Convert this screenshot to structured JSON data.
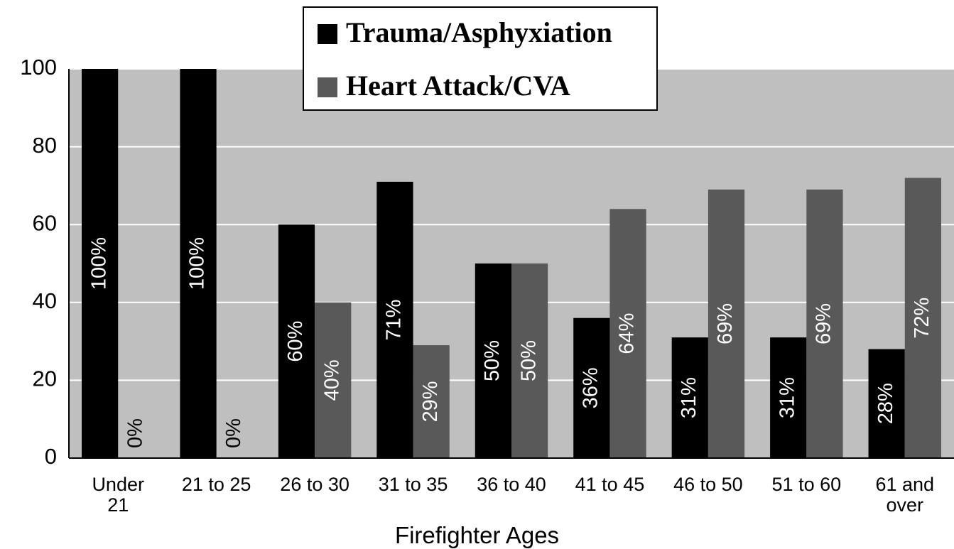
{
  "chart_data": {
    "type": "bar",
    "x_label": "Firefighter Ages",
    "categories": [
      "Under\n21",
      "21 to 25",
      "26 to 30",
      "31 to 35",
      "36 to 40",
      "41 to 45",
      "46 to 50",
      "51 to 60",
      "61 and\nover"
    ],
    "series": [
      {
        "name": "Trauma/Asphyxiation",
        "color": "#000000",
        "values": [
          100,
          100,
          60,
          71,
          50,
          36,
          31,
          31,
          28
        ],
        "value_labels": [
          "100%",
          "100%",
          "60%",
          "71%",
          "50%",
          "36%",
          "31%",
          "31%",
          "28%"
        ]
      },
      {
        "name": "Heart Attack/CVA",
        "color": "#595959",
        "values": [
          0,
          0,
          40,
          29,
          50,
          64,
          69,
          69,
          72
        ],
        "value_labels": [
          "0%",
          "0%",
          "40%",
          "29%",
          "50%",
          "64%",
          "69%",
          "69%",
          "72%"
        ]
      }
    ],
    "ylim": [
      0,
      100
    ],
    "yticks": [
      0,
      20,
      40,
      60,
      80,
      100
    ],
    "grid": true
  }
}
